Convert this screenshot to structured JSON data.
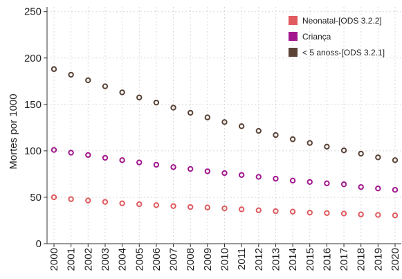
{
  "chart_data": {
    "type": "scatter",
    "title": "",
    "xlabel": "",
    "ylabel": "Mortes por 1000",
    "ylim": [
      0,
      255
    ],
    "yticks": [
      0,
      50,
      100,
      150,
      200,
      250
    ],
    "grid": true,
    "legend_position": "top-right",
    "x": [
      "2000",
      "2001",
      "2002",
      "2003",
      "2004",
      "2005",
      "2006",
      "2007",
      "2008",
      "2009",
      "2010",
      "2011",
      "2012",
      "2013",
      "2014",
      "2015",
      "2016",
      "2017",
      "2018",
      "2019",
      "2020"
    ],
    "series": [
      {
        "name": "Neonatal-[ODS 3.2.2]",
        "color": "#e05a5f",
        "values": [
          50,
          48,
          46.5,
          45,
          43.5,
          42.5,
          41.5,
          40.5,
          39.5,
          39,
          38,
          37,
          36,
          35,
          34.5,
          33.5,
          33,
          32.5,
          31.5,
          31,
          30.5
        ]
      },
      {
        "name": "Criança",
        "color": "#a2178d",
        "values": [
          101,
          98,
          95.5,
          92.5,
          90,
          87.5,
          85,
          82.5,
          80.5,
          78,
          76,
          74,
          72,
          70,
          68,
          66.5,
          65,
          64,
          61,
          59.5,
          58
        ]
      },
      {
        "name": "< 5 anoss-[ODS 3.2.1]",
        "color": "#5a4236",
        "values": [
          188,
          182,
          176,
          169.5,
          163,
          157.5,
          152,
          146.5,
          141,
          136,
          131,
          126.5,
          121.5,
          117,
          112.5,
          108.5,
          104.5,
          100.5,
          97,
          93,
          90
        ]
      }
    ]
  }
}
